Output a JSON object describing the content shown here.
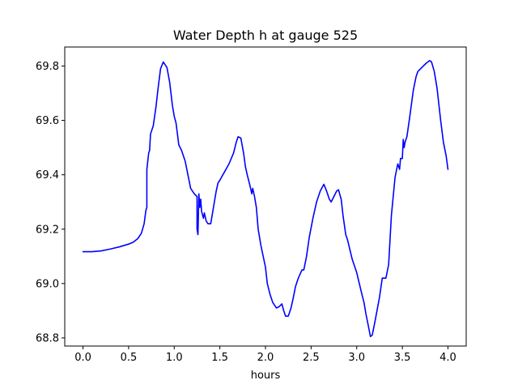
{
  "chart_data": {
    "type": "line",
    "title": "Water Depth h at gauge 525",
    "xlabel": "hours",
    "ylabel": "",
    "xlim": [
      -0.2,
      4.2
    ],
    "ylim": [
      68.77,
      69.87
    ],
    "grid": false,
    "xticks": [
      0.0,
      0.5,
      1.0,
      1.5,
      2.0,
      2.5,
      3.0,
      3.5,
      4.0
    ],
    "xtick_labels": [
      "0.0",
      "0.5",
      "1.0",
      "1.5",
      "2.0",
      "2.5",
      "3.0",
      "3.5",
      "4.0"
    ],
    "yticks": [
      68.8,
      69.0,
      69.2,
      69.4,
      69.6,
      69.8
    ],
    "ytick_labels": [
      "68.8",
      "69.0",
      "69.2",
      "69.4",
      "69.6",
      "69.8"
    ],
    "series": [
      {
        "color": "#0000ff",
        "x": [
          0.0,
          0.1,
          0.2,
          0.3,
          0.4,
          0.5,
          0.55,
          0.6,
          0.64,
          0.67,
          0.69,
          0.7,
          0.7,
          0.72,
          0.73,
          0.74,
          0.77,
          0.8,
          0.82,
          0.85,
          0.88,
          0.92,
          0.95,
          0.98,
          1.0,
          1.02,
          1.05,
          1.08,
          1.12,
          1.15,
          1.18,
          1.22,
          1.25,
          1.25,
          1.26,
          1.27,
          1.28,
          1.29,
          1.3,
          1.32,
          1.33,
          1.35,
          1.37,
          1.4,
          1.42,
          1.44,
          1.46,
          1.48,
          1.5,
          1.55,
          1.6,
          1.65,
          1.68,
          1.7,
          1.73,
          1.76,
          1.78,
          1.8,
          1.83,
          1.85,
          1.86,
          1.88,
          1.9,
          1.92,
          1.95,
          2.0,
          2.02,
          2.05,
          2.08,
          2.12,
          2.15,
          2.18,
          2.2,
          2.22,
          2.25,
          2.28,
          2.3,
          2.33,
          2.36,
          2.4,
          2.42,
          2.45,
          2.48,
          2.52,
          2.56,
          2.6,
          2.64,
          2.67,
          2.7,
          2.72,
          2.75,
          2.78,
          2.8,
          2.83,
          2.85,
          2.88,
          2.9,
          2.95,
          3.0,
          3.05,
          3.08,
          3.1,
          3.13,
          3.15,
          3.17,
          3.2,
          3.25,
          3.28,
          3.32,
          3.35,
          3.38,
          3.42,
          3.45,
          3.47,
          3.48,
          3.5,
          3.51,
          3.52,
          3.53,
          3.55,
          3.58,
          3.62,
          3.65,
          3.67,
          3.7,
          3.73,
          3.76,
          3.8,
          3.82,
          3.85,
          3.88,
          3.92,
          3.95,
          3.98,
          4.0
        ],
        "y": [
          69.117,
          69.117,
          69.12,
          69.127,
          69.135,
          69.145,
          69.152,
          69.165,
          69.185,
          69.22,
          69.27,
          69.28,
          69.42,
          69.48,
          69.49,
          69.55,
          69.58,
          69.65,
          69.71,
          69.79,
          69.815,
          69.795,
          69.74,
          69.655,
          69.615,
          69.59,
          69.51,
          69.49,
          69.45,
          69.4,
          69.35,
          69.33,
          69.32,
          69.2,
          69.18,
          69.33,
          69.28,
          69.31,
          69.265,
          69.24,
          69.26,
          69.23,
          69.22,
          69.22,
          69.26,
          69.3,
          69.34,
          69.37,
          69.38,
          69.41,
          69.44,
          69.48,
          69.52,
          69.54,
          69.535,
          69.48,
          69.43,
          69.4,
          69.36,
          69.33,
          69.35,
          69.32,
          69.28,
          69.2,
          69.14,
          69.06,
          69.0,
          68.96,
          68.93,
          68.91,
          68.915,
          68.925,
          68.9,
          68.88,
          68.88,
          68.91,
          68.94,
          68.99,
          69.02,
          69.05,
          69.05,
          69.1,
          69.17,
          69.24,
          69.3,
          69.34,
          69.365,
          69.34,
          69.31,
          69.3,
          69.32,
          69.34,
          69.345,
          69.31,
          69.25,
          69.18,
          69.16,
          69.09,
          69.04,
          68.97,
          68.93,
          68.89,
          68.84,
          68.805,
          68.81,
          68.86,
          68.95,
          69.02,
          69.02,
          69.07,
          69.25,
          69.39,
          69.44,
          69.42,
          69.46,
          69.46,
          69.53,
          69.5,
          69.52,
          69.54,
          69.61,
          69.71,
          69.76,
          69.78,
          69.79,
          69.8,
          69.81,
          69.82,
          69.815,
          69.78,
          69.72,
          69.6,
          69.52,
          69.47,
          69.42
        ]
      }
    ]
  }
}
